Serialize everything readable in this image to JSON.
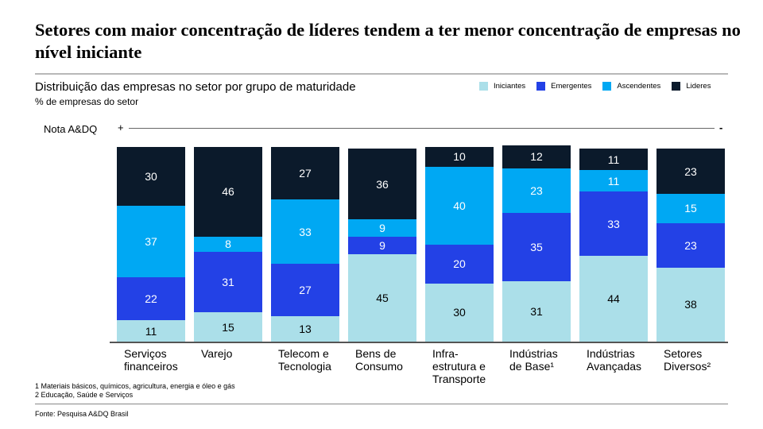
{
  "title": "Setores com maior concentração de líderes tendem a ter menor concentração de empresas no nível iniciante",
  "subtitle": "Distribuição das empresas no setor por grupo de maturidade",
  "unit": "% de empresas do setor",
  "nota": {
    "label": "Nota A&DQ",
    "plus": "+",
    "minus": "-"
  },
  "footnotes": [
    "1 Materiais básicos, químicos, agricultura, energia e óleo e gás",
    "2 Educação, Saúde e Serviços"
  ],
  "source": "Fonte: Pesquisa A&DQ Brasil",
  "chart_data": {
    "type": "bar",
    "stacked": true,
    "legend_placement": "top-right",
    "categories": [
      "Serviços\nfinanceiros",
      "Varejo",
      "Telecom e\nTecnologia",
      "Bens de\nConsumo",
      "Infra-\nestrutura e\nTransporte",
      "Indústrias\nde Base¹",
      "Indústrias\nAvançadas",
      "Setores\nDiversos²"
    ],
    "series": [
      {
        "name": "Iniciantes",
        "color": "#abdfe9",
        "text": "#000000",
        "values": [
          11,
          15,
          13,
          45,
          30,
          31,
          44,
          38
        ]
      },
      {
        "name": "Emergentes",
        "color": "#2341e6",
        "text": "#ffffff",
        "values": [
          22,
          31,
          27,
          9,
          20,
          35,
          33,
          23
        ]
      },
      {
        "name": "Ascendentes",
        "color": "#00a8f3",
        "text": "#ffffff",
        "values": [
          37,
          8,
          33,
          9,
          40,
          23,
          11,
          15
        ]
      },
      {
        "name": "Lideres",
        "color": "#0b1a2b",
        "text": "#ffffff",
        "values": [
          30,
          46,
          27,
          36,
          10,
          12,
          11,
          23
        ]
      }
    ],
    "ylim": [
      0,
      100
    ]
  }
}
